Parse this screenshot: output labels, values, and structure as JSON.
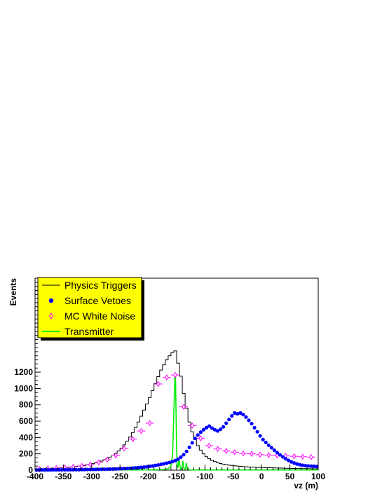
{
  "chart_data": {
    "type": "line",
    "xlabel": "vz (m)",
    "ylabel": "Events",
    "xlim": [
      -400,
      100
    ],
    "ylim": [
      0,
      2350
    ],
    "x_ticks": [
      -400,
      -350,
      -300,
      -250,
      -200,
      -150,
      -100,
      -50,
      0,
      50,
      100
    ],
    "x_tick_labels": [
      "-400",
      "-350",
      "-300",
      "-250",
      "-200",
      "-150",
      "-100",
      "-50",
      "0",
      "50",
      "100"
    ],
    "y_ticks": [
      0,
      200,
      400,
      600,
      800,
      1000,
      1200
    ],
    "y_tick_labels": [
      "0",
      "200",
      "400",
      "600",
      "800",
      "1000",
      "1200"
    ],
    "legend_position": "top-left",
    "series": [
      {
        "name": "Physics Triggers",
        "style": "histogram",
        "color": "#000000",
        "bin_edges": [
          -400,
          -395,
          -390,
          -385,
          -380,
          -375,
          -370,
          -365,
          -360,
          -355,
          -350,
          -345,
          -340,
          -335,
          -330,
          -325,
          -320,
          -315,
          -310,
          -305,
          -300,
          -295,
          -290,
          -285,
          -280,
          -275,
          -270,
          -265,
          -260,
          -255,
          -250,
          -245,
          -240,
          -235,
          -230,
          -225,
          -220,
          -215,
          -210,
          -205,
          -200,
          -195,
          -190,
          -185,
          -180,
          -175,
          -170,
          -165,
          -160,
          -155,
          -150,
          -145,
          -140,
          -135,
          -130,
          -125,
          -120,
          -115,
          -110,
          -105,
          -100,
          -95,
          -90,
          -85,
          -80,
          -75,
          -70,
          -65,
          -60,
          -55,
          -50,
          -45,
          -40,
          -35,
          -30,
          -25,
          -20,
          -15,
          -10,
          -5,
          0,
          5,
          10,
          15,
          20,
          25,
          30,
          35,
          40,
          45,
          50,
          55,
          60,
          65,
          70,
          75,
          80,
          85,
          90,
          95,
          100
        ],
        "values": [
          12,
          14,
          16,
          18,
          20,
          22,
          24,
          26,
          28,
          30,
          32,
          35,
          38,
          41,
          45,
          50,
          55,
          60,
          66,
          72,
          80,
          90,
          100,
          112,
          125,
          140,
          160,
          180,
          205,
          235,
          270,
          310,
          355,
          405,
          460,
          520,
          590,
          660,
          735,
          810,
          890,
          975,
          1060,
          1145,
          1225,
          1290,
          1350,
          1400,
          1440,
          1460,
          1310,
          1150,
          940,
          760,
          590,
          470,
          375,
          300,
          245,
          200,
          165,
          140,
          120,
          105,
          92,
          82,
          74,
          68,
          62,
          58,
          54,
          50,
          47,
          44,
          42,
          40,
          38,
          36,
          34,
          33,
          32,
          31,
          30,
          29,
          28,
          27,
          26,
          25,
          24,
          23,
          22,
          21,
          20,
          20,
          19,
          19,
          18,
          18,
          17,
          17
        ]
      },
      {
        "name": "Surface Vetoes",
        "style": "markers",
        "marker": "filled-circle",
        "color": "#0000ff",
        "x": [
          -397.5,
          -392.5,
          -387.5,
          -382.5,
          -377.5,
          -372.5,
          -367.5,
          -362.5,
          -357.5,
          -352.5,
          -347.5,
          -342.5,
          -337.5,
          -332.5,
          -327.5,
          -322.5,
          -317.5,
          -312.5,
          -307.5,
          -302.5,
          -297.5,
          -292.5,
          -287.5,
          -282.5,
          -277.5,
          -272.5,
          -267.5,
          -262.5,
          -257.5,
          -252.5,
          -247.5,
          -242.5,
          -237.5,
          -232.5,
          -227.5,
          -222.5,
          -217.5,
          -212.5,
          -207.5,
          -202.5,
          -197.5,
          -192.5,
          -187.5,
          -182.5,
          -177.5,
          -172.5,
          -167.5,
          -162.5,
          -157.5,
          -152.5,
          -147.5,
          -142.5,
          -137.5,
          -132.5,
          -127.5,
          -122.5,
          -117.5,
          -112.5,
          -107.5,
          -102.5,
          -97.5,
          -92.5,
          -87.5,
          -82.5,
          -77.5,
          -72.5,
          -67.5,
          -62.5,
          -57.5,
          -52.5,
          -47.5,
          -42.5,
          -37.5,
          -32.5,
          -27.5,
          -22.5,
          -17.5,
          -12.5,
          -7.5,
          -2.5,
          2.5,
          7.5,
          12.5,
          17.5,
          22.5,
          27.5,
          32.5,
          37.5,
          42.5,
          47.5,
          52.5,
          57.5,
          62.5,
          67.5,
          72.5,
          77.5,
          82.5,
          87.5,
          92.5,
          97.5
        ],
        "y": [
          2,
          2,
          3,
          3,
          3,
          3,
          4,
          4,
          4,
          4,
          5,
          5,
          5,
          6,
          6,
          6,
          7,
          7,
          8,
          8,
          9,
          9,
          10,
          11,
          11,
          12,
          13,
          14,
          15,
          17,
          18,
          20,
          22,
          24,
          26,
          28,
          31,
          34,
          38,
          42,
          47,
          52,
          58,
          64,
          71,
          78,
          86,
          95,
          105,
          118,
          135,
          160,
          190,
          230,
          280,
          335,
          390,
          430,
          465,
          495,
          520,
          540,
          515,
          495,
          480,
          500,
          530,
          575,
          620,
          665,
          700,
          690,
          700,
          680,
          650,
          610,
          570,
          520,
          470,
          420,
          375,
          340,
          305,
          275,
          245,
          215,
          188,
          163,
          140,
          120,
          102,
          88,
          76,
          67,
          60,
          55,
          52,
          50,
          48,
          45
        ],
        "y_err": [
          1,
          1,
          1,
          1,
          1,
          1,
          1,
          1,
          1,
          1,
          1,
          1,
          1,
          1,
          1,
          1,
          1,
          1,
          1,
          1,
          1,
          2,
          2,
          2,
          2,
          2,
          2,
          2,
          2,
          2,
          2,
          2,
          2,
          2,
          2,
          2,
          3,
          3,
          3,
          3,
          3,
          3,
          3,
          3,
          3,
          3,
          4,
          4,
          4,
          4,
          4,
          5,
          5,
          5,
          6,
          6,
          7,
          7,
          8,
          8,
          9,
          9,
          9,
          9,
          8,
          9,
          9,
          9,
          10,
          10,
          11,
          11,
          11,
          10,
          10,
          10,
          9,
          9,
          8,
          8,
          8,
          7,
          7,
          6,
          6,
          6,
          5,
          5,
          5,
          4,
          4,
          4,
          4,
          3,
          3,
          3,
          3,
          3,
          3,
          3
        ]
      },
      {
        "name": "MC White Noise",
        "style": "markers-with-xerr",
        "marker": "open-diamond",
        "color": "#ff00ff",
        "x": [
          -392.5,
          -377.5,
          -362.5,
          -347.5,
          -332.5,
          -317.5,
          -302.5,
          -287.5,
          -272.5,
          -257.5,
          -242.5,
          -227.5,
          -212.5,
          -197.5,
          -182.5,
          -167.5,
          -152.5,
          -137.5,
          -122.5,
          -107.5,
          -92.5,
          -77.5,
          -62.5,
          -47.5,
          -32.5,
          -17.5,
          -2.5,
          12.5,
          27.5,
          42.5,
          57.5,
          72.5,
          87.5
        ],
        "y": [
          15,
          20,
          26,
          32,
          40,
          52,
          68,
          95,
          130,
          180,
          265,
          380,
          480,
          575,
          1055,
          1135,
          1165,
          775,
          545,
          390,
          300,
          260,
          235,
          220,
          205,
          200,
          190,
          185,
          180,
          175,
          170,
          165,
          160
        ],
        "x_err": [
          7.5,
          7.5,
          7.5,
          7.5,
          7.5,
          7.5,
          7.5,
          7.5,
          7.5,
          7.5,
          7.5,
          7.5,
          7.5,
          7.5,
          7.5,
          7.5,
          7.5,
          7.5,
          7.5,
          7.5,
          7.5,
          7.5,
          7.5,
          7.5,
          7.5,
          7.5,
          7.5,
          7.5,
          7.5,
          7.5,
          7.5,
          7.5,
          7.5
        ]
      },
      {
        "name": "Transmitter",
        "style": "line",
        "color": "#00ee00",
        "x": [
          -400,
          -380,
          -360,
          -340,
          -320,
          -300,
          -280,
          -260,
          -240,
          -220,
          -200,
          -190,
          -180,
          -170,
          -165,
          -160,
          -157,
          -155,
          -153,
          -152,
          -151,
          -150,
          -149,
          -148,
          -147,
          -146,
          -145,
          -144,
          -143,
          -142,
          -141,
          -140,
          -139,
          -138,
          -137,
          -136,
          -135,
          -134,
          -133,
          -132,
          -131,
          -130,
          -128,
          -125,
          -120,
          -110,
          -100,
          -80,
          -60,
          -40,
          -20,
          0,
          20,
          40,
          60,
          80,
          100
        ],
        "y": [
          3,
          3,
          3,
          3,
          3,
          3,
          3,
          3,
          3,
          3,
          3,
          4,
          6,
          10,
          18,
          50,
          200,
          700,
          1150,
          1140,
          700,
          250,
          60,
          30,
          60,
          120,
          110,
          40,
          15,
          10,
          20,
          60,
          110,
          60,
          20,
          10,
          10,
          30,
          90,
          50,
          15,
          8,
          5,
          4,
          3,
          3,
          3,
          3,
          3,
          3,
          3,
          3,
          3,
          3,
          3,
          3,
          3
        ]
      }
    ]
  }
}
